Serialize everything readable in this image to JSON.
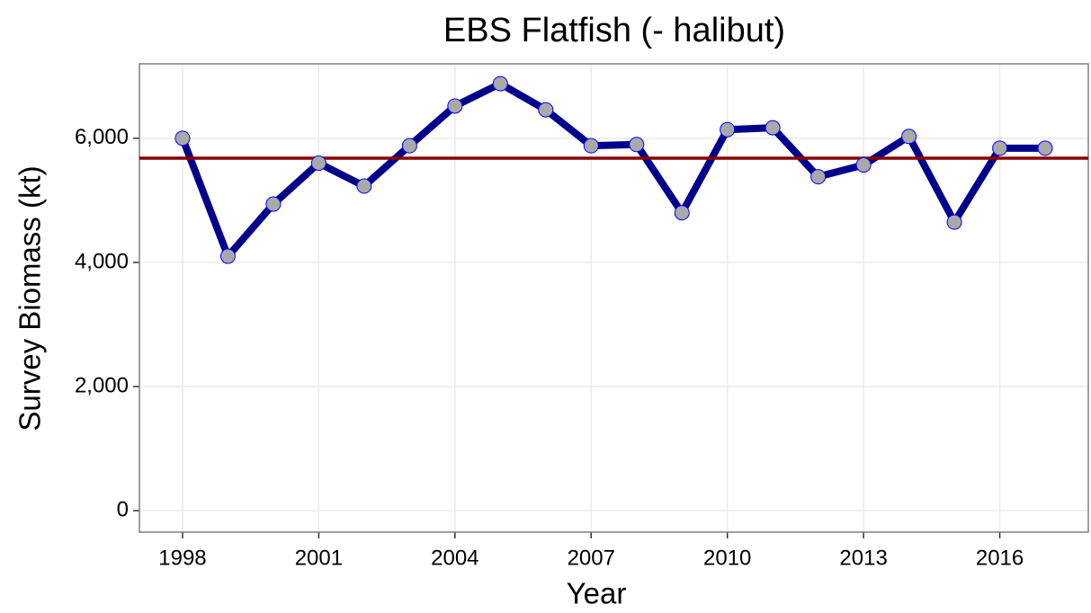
{
  "chart_data": {
    "type": "line",
    "title": "EBS Flatfish (- halibut)",
    "x_label": "Year",
    "y_label": "Survey Biomass (kt)",
    "x": [
      1998,
      1999,
      2000,
      2001,
      2002,
      2003,
      2004,
      2005,
      2006,
      2007,
      2008,
      2009,
      2010,
      2011,
      2012,
      2013,
      2014,
      2015,
      2016,
      2017
    ],
    "series": [
      {
        "color": "#00008b",
        "marker_color": "#a9a9a9",
        "marker_edge": "#0000ff",
        "values": [
          6000,
          4100,
          4940,
          5600,
          5230,
          5880,
          6520,
          6880,
          6460,
          5880,
          5900,
          4800,
          6140,
          6170,
          5380,
          5570,
          6030,
          4650,
          5840,
          5840
        ]
      }
    ],
    "reference_line": {
      "value": 5680,
      "color": "#8b0000"
    },
    "xlim": [
      1997.05,
      2017.95
    ],
    "xticks": [
      1998,
      2001,
      2004,
      2007,
      2010,
      2013,
      2016
    ],
    "ylim": [
      -345,
      7200
    ],
    "yticks": [
      0,
      {
        "value": 2000,
        "label": "2,000"
      },
      {
        "value": 4000,
        "label": "4,000"
      },
      {
        "value": 6000,
        "label": "6,000"
      }
    ],
    "grid": true
  }
}
